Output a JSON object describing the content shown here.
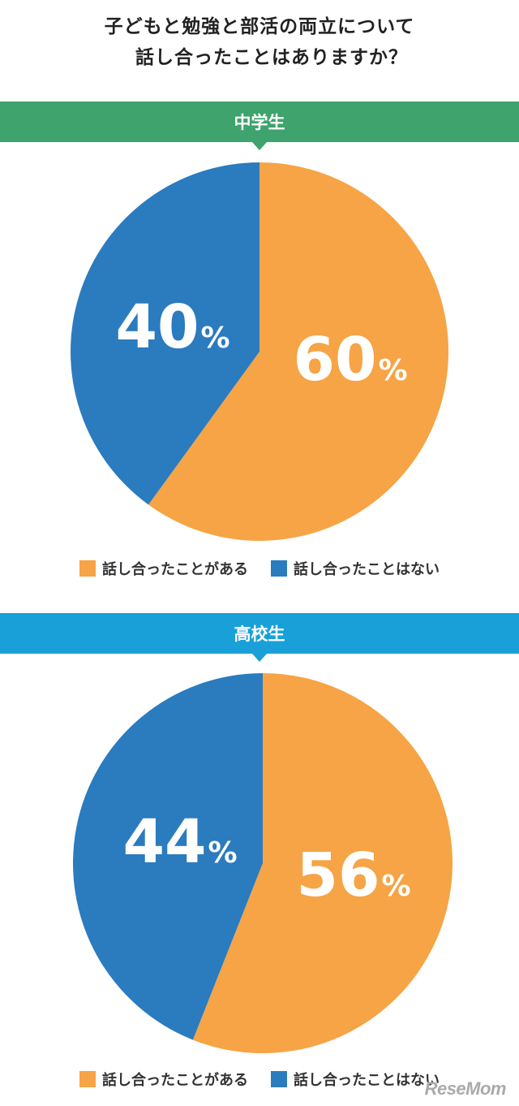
{
  "title": {
    "line1": "子どもと勉強と部活の両立について",
    "line2": "話し合ったことはありますか？"
  },
  "legend": {
    "yes": "話し合ったことがある",
    "no": "話し合ったことはない"
  },
  "colors": {
    "yes": "#f6a445",
    "no": "#2b7bbf",
    "band_ms": "#3ea36c",
    "band_hs": "#1aa0d8"
  },
  "logo": "ReseMom",
  "chart_data": [
    {
      "type": "pie",
      "title": "中学生",
      "labels": [
        "話し合ったことがある",
        "話し合ったことはない"
      ],
      "values": [
        60,
        40
      ],
      "value_labels": [
        "60",
        "40"
      ],
      "unit": "%"
    },
    {
      "type": "pie",
      "title": "高校生",
      "labels": [
        "話し合ったことがある",
        "話し合ったことはない"
      ],
      "values": [
        56,
        44
      ],
      "value_labels": [
        "56",
        "44"
      ],
      "unit": "%"
    }
  ]
}
